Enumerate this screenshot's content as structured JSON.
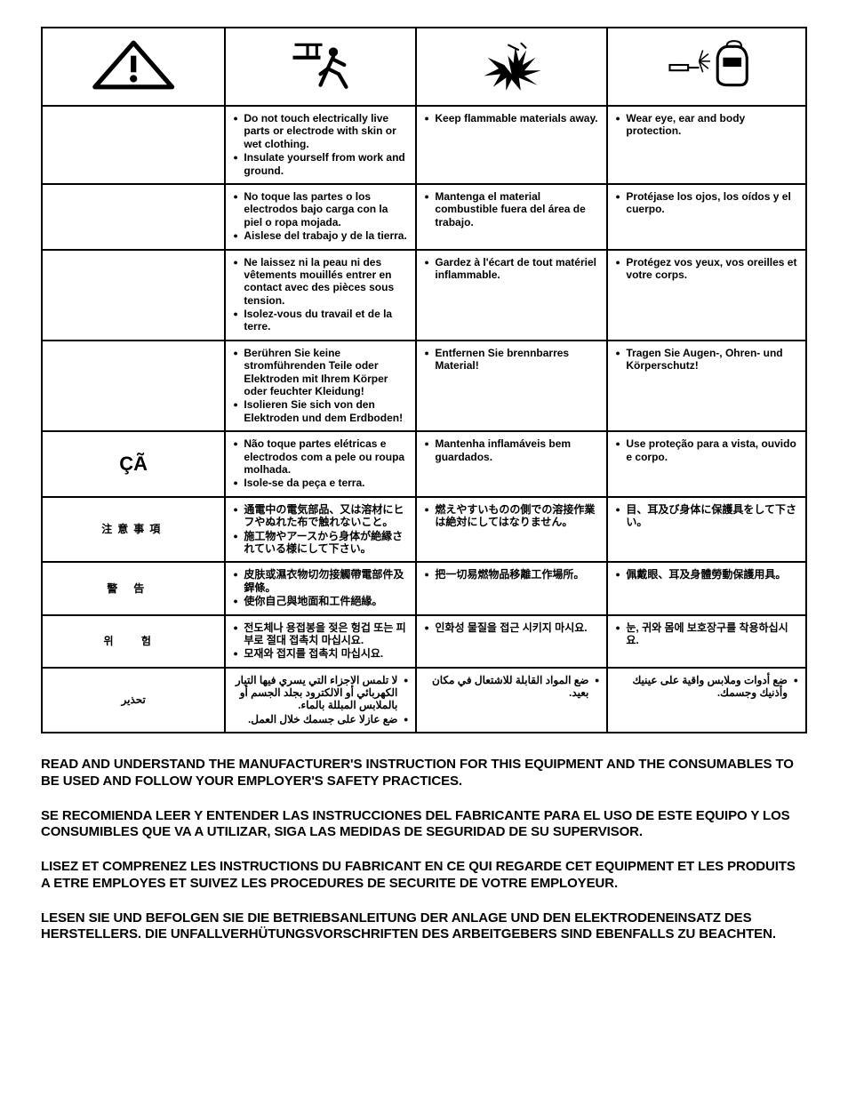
{
  "table": {
    "border_color": "#000000",
    "background_color": "#ffffff",
    "text_color": "#000000",
    "font_size_pt": 9,
    "columns": [
      {
        "id": "label",
        "width_pct": 24
      },
      {
        "id": "col1",
        "width_pct": 25,
        "icon": "warning-triangle"
      },
      {
        "id": "col2",
        "width_pct": 25,
        "icon": "person-running"
      },
      {
        "id": "col3",
        "width_pct": 26,
        "icon": "spark-explosion"
      },
      {
        "id": "col4_hdr",
        "icon": "welder-face-shield"
      }
    ],
    "icons": {
      "warning-triangle": "warning-triangle",
      "person-running": "person-running",
      "spark-explosion": "spark-explosion",
      "welder-face-shield": "welder-face-shield"
    },
    "rows": [
      {
        "lang": "en",
        "label": "",
        "col1": [
          "Do not touch electrically live parts or electrode with skin or wet clothing.",
          "Insulate yourself from work and ground."
        ],
        "col2": [
          "Keep flammable materials away."
        ],
        "col3": [
          "Wear eye, ear and body protection."
        ]
      },
      {
        "lang": "es",
        "label": "",
        "col1": [
          "No toque las partes o los electrodos bajo carga con la piel o ropa mojada.",
          "Aislese del trabajo y de la tierra."
        ],
        "col2": [
          "Mantenga el material combustible fuera del área de trabajo."
        ],
        "col3": [
          "Protéjase los ojos, los oídos y el cuerpo."
        ]
      },
      {
        "lang": "fr",
        "label": "",
        "col1": [
          "Ne laissez ni la peau ni des vêtements mouillés entrer en contact avec des pièces sous tension.",
          "Isolez-vous du travail et de la terre."
        ],
        "col2": [
          "Gardez à l'écart de tout matériel inflammable."
        ],
        "col3": [
          "Protégez vos yeux, vos oreilles et votre corps."
        ]
      },
      {
        "lang": "de",
        "label": "",
        "col1": [
          "Berühren Sie keine stromführenden Teile oder Elektroden mit Ihrem Körper oder feuchter Kleidung!",
          "Isolieren Sie sich von den Elektroden und dem Erdboden!"
        ],
        "col2": [
          "Entfernen Sie brennbarres Material!"
        ],
        "col3": [
          "Tragen Sie Augen-, Ohren- und Körperschutz!"
        ]
      },
      {
        "lang": "pt",
        "label": "ÇÃ",
        "label_class": "",
        "col1": [
          "Não toque partes elétricas e electrodos com a pele ou roupa molhada.",
          "Isole-se da peça e terra."
        ],
        "col2": [
          "Mantenha inflamáveis bem guardados."
        ],
        "col3": [
          "Use proteção para a vista, ouvido e corpo."
        ]
      },
      {
        "lang": "ja",
        "label": "注意事項",
        "label_class": "lang-cjk",
        "col1": [
          "通電中の電気部品、又は溶材にヒフやぬれた布で触れないこと。",
          "施工物やアースから身体が絶縁されている様にして下さい。"
        ],
        "col2": [
          "燃えやすいものの側での溶接作業は絶対にしてはなりません。"
        ],
        "col3": [
          "目、耳及び身体に保護具をして下さい。"
        ]
      },
      {
        "lang": "zh",
        "label": "警告",
        "label_class": "lang-cjk-zh",
        "col1": [
          "皮肤或濕衣物切勿接觸帶電部件及銲條。",
          "使你自己與地面和工件絕緣。"
        ],
        "col2": [
          "把一切易燃物品移離工作場所。"
        ],
        "col3": [
          "佩戴眼、耳及身體勞動保護用具。"
        ]
      },
      {
        "lang": "ko",
        "label": "위 험",
        "label_class": "lang-ko",
        "col1": [
          "전도체나 용접봉을 젖은 헝겁 또는 피부로 절대 접촉치 마십시요.",
          "모재와 접지를 접촉치 마십시요."
        ],
        "col2": [
          "인화성 물질을 접근 시키지 마시요."
        ],
        "col3": [
          "눈, 귀와 몸에 보호장구를 착용하십시요."
        ]
      },
      {
        "lang": "ar",
        "label": "تحذير",
        "label_class": "lang-ar",
        "rtl": true,
        "col1": [
          "لا تلمس الاجزاء التي يسري فيها التيار الكهربائي أو الالكترود بجلد الجسم أو بالملابس المبللة بالماء.",
          "ضع عازلا على جسمك خلال العمل."
        ],
        "col2": [
          "ضع المواد القابلة للاشتعال في مكان بعيد."
        ],
        "col3": [
          "ضع أدوات وملابس واقية على عينيك وأذنيك وجسمك."
        ]
      }
    ]
  },
  "instructions": {
    "font_size_pt": 11,
    "font_weight": "bold",
    "color": "#000000",
    "paragraphs": [
      "READ AND UNDERSTAND THE MANUFACTURER'S INSTRUCTION FOR THIS EQUIPMENT AND THE CONSUMABLES TO BE USED AND FOLLOW YOUR EMPLOYER'S SAFETY PRACTICES.",
      "SE RECOMIENDA LEER Y ENTENDER LAS INSTRUCCIONES DEL FABRICANTE PARA EL USO DE ESTE EQUIPO Y LOS CONSUMIBLES QUE VA A UTILIZAR, SIGA LAS MEDIDAS DE SEGURIDAD DE SU SUPERVISOR.",
      "LISEZ ET COMPRENEZ LES INSTRUCTIONS DU FABRICANT EN CE QUI REGARDE CET EQUIPMENT ET LES PRODUITS A ETRE EMPLOYES ET SUIVEZ LES PROCEDURES DE SECURITE DE VOTRE EMPLOYEUR.",
      "LESEN SIE UND BEFOLGEN SIE DIE BETRIEBSANLEITUNG DER ANLAGE UND DEN ELEKTRODENEINSATZ DES HERSTELLERS. DIE UNFALLVERHÜTUNGSVORSCHRIFTEN DES ARBEITGEBERS SIND EBENFALLS ZU BEACHTEN."
    ]
  }
}
